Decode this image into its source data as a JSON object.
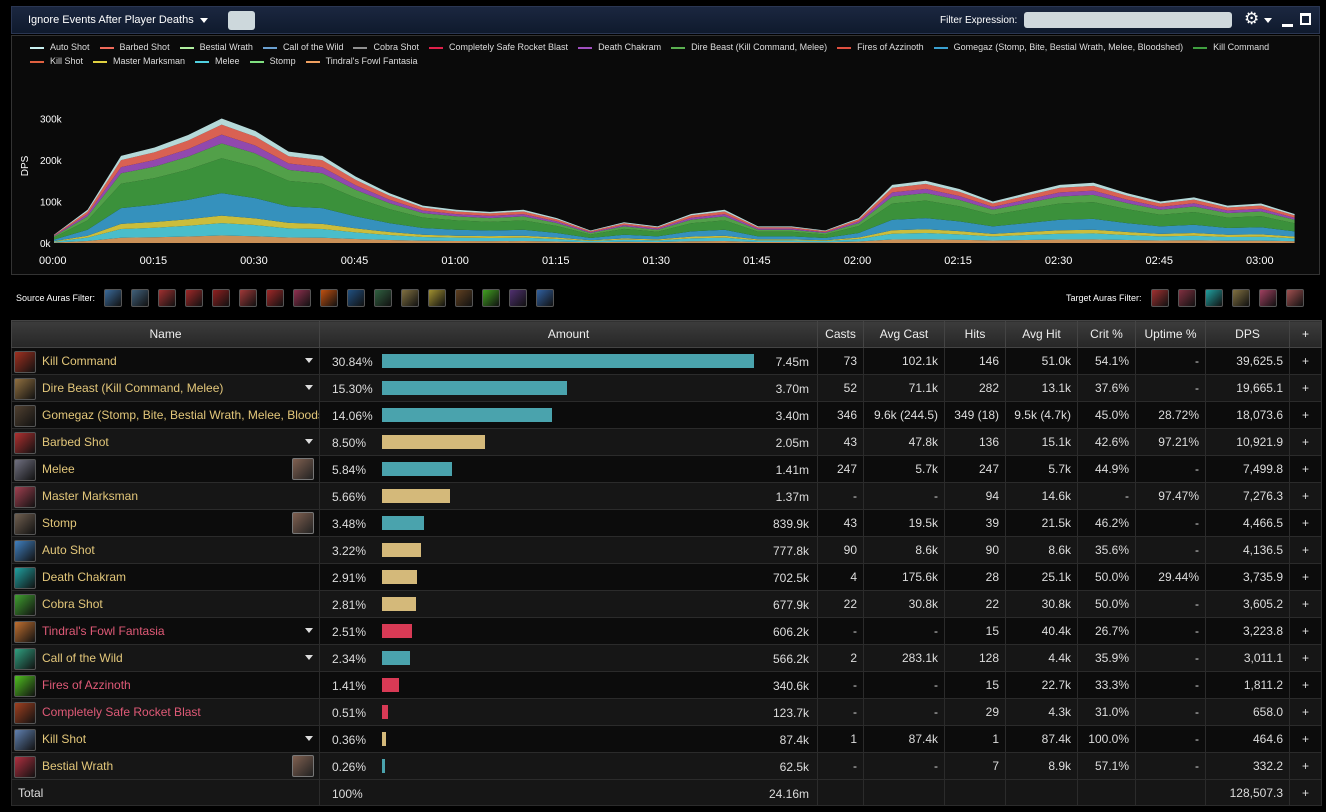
{
  "toolbar": {
    "ignore_label": "Ignore Events After Player Deaths",
    "filter_label": "Filter Expression:",
    "filter_value": "",
    "gear_glyph": "⚙"
  },
  "legend": [
    {
      "name": "Auto Shot",
      "color": "#c8f0f0"
    },
    {
      "name": "Barbed Shot",
      "color": "#f06a5a"
    },
    {
      "name": "Bestial Wrath",
      "color": "#b0f0a0"
    },
    {
      "name": "Call of the Wild",
      "color": "#6aa0d0"
    },
    {
      "name": "Cobra Shot",
      "color": "#909090"
    },
    {
      "name": "Completely Safe Rocket Blast",
      "color": "#e0204a"
    },
    {
      "name": "Death Chakram",
      "color": "#a050c0"
    },
    {
      "name": "Dire Beast (Kill Command, Melee)",
      "color": "#5ab050"
    },
    {
      "name": "Fires of Azzinoth",
      "color": "#e05040"
    },
    {
      "name": "Gomegaz (Stomp, Bite, Bestial Wrath, Melee, Bloodshed)",
      "color": "#3aa0d0"
    },
    {
      "name": "Kill Command",
      "color": "#40a040"
    },
    {
      "name": "Kill Shot",
      "color": "#e06040"
    },
    {
      "name": "Master Marksman",
      "color": "#e0d040"
    },
    {
      "name": "Melee",
      "color": "#50d0e0"
    },
    {
      "name": "Stomp",
      "color": "#80e080"
    },
    {
      "name": "Tindral's Fowl Fantasia",
      "color": "#f0a060"
    }
  ],
  "chart_data": {
    "type": "area",
    "ylabel": "DPS",
    "y_ticks": [
      "0k",
      "100k",
      "200k",
      "300k"
    ],
    "ylim": [
      0,
      330000
    ],
    "x_ticks": [
      "00:00",
      "00:15",
      "00:30",
      "00:45",
      "01:00",
      "01:15",
      "01:30",
      "01:45",
      "02:00",
      "02:15",
      "02:30",
      "02:45",
      "03:00"
    ],
    "x_seconds": [
      0,
      5,
      10,
      15,
      20,
      25,
      30,
      35,
      40,
      45,
      50,
      55,
      60,
      65,
      70,
      75,
      80,
      85,
      90,
      95,
      100,
      105,
      110,
      115,
      120,
      125,
      130,
      135,
      140,
      145,
      150,
      155,
      160,
      165,
      170,
      175,
      180,
      185
    ],
    "total_dps": [
      20000,
      80000,
      210000,
      230000,
      260000,
      300000,
      270000,
      220000,
      210000,
      160000,
      120000,
      90000,
      80000,
      75000,
      80000,
      60000,
      30000,
      50000,
      40000,
      70000,
      80000,
      40000,
      40000,
      30000,
      60000,
      140000,
      150000,
      130000,
      100000,
      120000,
      140000,
      145000,
      120000,
      100000,
      110000,
      90000,
      95000,
      70000
    ]
  },
  "source_auras_label": "Source Auras Filter:",
  "source_aura_icons": [
    "hunter-mark-icon",
    "aspect-icon",
    "barbed-icon",
    "wrath-icon",
    "beast-icon",
    "claw-icon",
    "bleed-icon",
    "trinket-icon",
    "fire-icon",
    "chain-icon",
    "wild-icon",
    "pack-icon",
    "gold-icon",
    "tusk-icon",
    "poison-icon",
    "spirit-icon",
    "arrow-icon"
  ],
  "target_auras_label": "Target Auras Filter:",
  "target_aura_icons": [
    "hunter-mark-target-icon",
    "claw-target-icon",
    "chakram-target-icon",
    "pack-target-icon",
    "blood-target-icon",
    "mark-target-icon"
  ],
  "table": {
    "headers": [
      "Name",
      "Amount",
      "Casts",
      "Avg Cast",
      "Hits",
      "Avg Hit",
      "Crit %",
      "Uptime %",
      "DPS",
      "+"
    ],
    "rows": [
      {
        "name": "Kill Command",
        "color": "gold",
        "caret": true,
        "pet": false,
        "pct": "30.84%",
        "frac": 1.0,
        "bar": "blue",
        "amount": "7.45m",
        "casts": "73",
        "avgcast": "102.1k",
        "hits": "146",
        "avghit": "51.0k",
        "crit": "54.1%",
        "uptime": "-",
        "dps": "39,625.5",
        "dpscolor": "green",
        "icon": "#a03020"
      },
      {
        "name": "Dire Beast (Kill Command, Melee)",
        "color": "gold",
        "caret": true,
        "pet": false,
        "pct": "15.30%",
        "frac": 0.497,
        "bar": "blue",
        "amount": "3.70m",
        "casts": "52",
        "avgcast": "71.1k",
        "hits": "282",
        "avghit": "13.1k",
        "crit": "37.6%",
        "uptime": "-",
        "dps": "19,665.1",
        "dpscolor": "green",
        "icon": "#907040"
      },
      {
        "name": "Gomegaz (Stomp, Bite, Bestial Wrath, Melee, Bloodshed)",
        "color": "gold",
        "caret": false,
        "pet": false,
        "pct": "14.06%",
        "frac": 0.456,
        "bar": "blue",
        "amount": "3.40m",
        "casts": "346",
        "avgcast": "9.6k (244.5)",
        "hits": "349 (18)",
        "avghit": "9.5k (4.7k)",
        "crit": "45.0%",
        "uptime": "28.72%",
        "dps": "18,073.6",
        "dpscolor": "green",
        "icon": "#504030"
      },
      {
        "name": "Barbed Shot",
        "color": "gold",
        "caret": true,
        "pet": false,
        "pct": "8.50%",
        "frac": 0.276,
        "bar": "tan",
        "amount": "2.05m",
        "casts": "43",
        "avgcast": "47.8k",
        "hits": "136",
        "avghit": "15.1k",
        "crit": "42.6%",
        "uptime": "97.21%",
        "dps": "10,921.9",
        "dpscolor": "green",
        "icon": "#b03030"
      },
      {
        "name": "Melee",
        "color": "gold",
        "caret": false,
        "pet": true,
        "pct": "5.84%",
        "frac": 0.189,
        "bar": "blue",
        "amount": "1.41m",
        "casts": "247",
        "avgcast": "5.7k",
        "hits": "247",
        "avghit": "5.7k",
        "crit": "44.9%",
        "uptime": "-",
        "dps": "7,499.8",
        "dpscolor": "green",
        "icon": "#707080"
      },
      {
        "name": "Master Marksman",
        "color": "gold",
        "caret": false,
        "pet": false,
        "pct": "5.66%",
        "frac": 0.183,
        "bar": "tan",
        "amount": "1.37m",
        "casts": "-",
        "avgcast": "-",
        "hits": "94",
        "avghit": "14.6k",
        "crit": "-",
        "uptime": "97.47%",
        "dps": "7,276.3",
        "dpscolor": "white",
        "icon": "#a04050"
      },
      {
        "name": "Stomp",
        "color": "gold",
        "caret": false,
        "pet": true,
        "pct": "3.48%",
        "frac": 0.113,
        "bar": "blue",
        "amount": "839.9k",
        "casts": "43",
        "avgcast": "19.5k",
        "hits": "39",
        "avghit": "21.5k",
        "crit": "46.2%",
        "uptime": "-",
        "dps": "4,466.5",
        "dpscolor": "green",
        "icon": "#706050"
      },
      {
        "name": "Auto Shot",
        "color": "gold",
        "caret": false,
        "pet": false,
        "pct": "3.22%",
        "frac": 0.104,
        "bar": "tan",
        "amount": "777.8k",
        "casts": "90",
        "avgcast": "8.6k",
        "hits": "90",
        "avghit": "8.6k",
        "crit": "35.6%",
        "uptime": "-",
        "dps": "4,136.5",
        "dpscolor": "white",
        "icon": "#4080c0"
      },
      {
        "name": "Death Chakram",
        "color": "gold",
        "caret": false,
        "pet": false,
        "pct": "2.91%",
        "frac": 0.094,
        "bar": "tan",
        "amount": "702.5k",
        "casts": "4",
        "avgcast": "175.6k",
        "hits": "28",
        "avghit": "25.1k",
        "crit": "50.0%",
        "uptime": "29.44%",
        "dps": "3,735.9",
        "dpscolor": "green",
        "icon": "#20a0a0"
      },
      {
        "name": "Cobra Shot",
        "color": "gold",
        "caret": false,
        "pet": false,
        "pct": "2.81%",
        "frac": 0.091,
        "bar": "tan",
        "amount": "677.9k",
        "casts": "22",
        "avgcast": "30.8k",
        "hits": "22",
        "avghit": "30.8k",
        "crit": "50.0%",
        "uptime": "-",
        "dps": "3,605.2",
        "dpscolor": "white",
        "icon": "#40a030"
      },
      {
        "name": "Tindral's Fowl Fantasia",
        "color": "pink",
        "caret": true,
        "pet": false,
        "pct": "2.51%",
        "frac": 0.081,
        "bar": "red",
        "amount": "606.2k",
        "casts": "-",
        "avgcast": "-",
        "hits": "15",
        "avghit": "40.4k",
        "crit": "26.7%",
        "uptime": "-",
        "dps": "3,223.8",
        "dpscolor": "green",
        "icon": "#c07030"
      },
      {
        "name": "Call of the Wild",
        "color": "gold",
        "caret": true,
        "pet": false,
        "pct": "2.34%",
        "frac": 0.076,
        "bar": "blue",
        "amount": "566.2k",
        "casts": "2",
        "avgcast": "283.1k",
        "hits": "128",
        "avghit": "4.4k",
        "crit": "35.9%",
        "uptime": "-",
        "dps": "3,011.1",
        "dpscolor": "white",
        "icon": "#30a080"
      },
      {
        "name": "Fires of Azzinoth",
        "color": "pink",
        "caret": false,
        "pet": false,
        "pct": "1.41%",
        "frac": 0.046,
        "bar": "red",
        "amount": "340.6k",
        "casts": "-",
        "avgcast": "-",
        "hits": "15",
        "avghit": "22.7k",
        "crit": "33.3%",
        "uptime": "-",
        "dps": "1,811.2",
        "dpscolor": "white",
        "icon": "#50c020"
      },
      {
        "name": "Completely Safe Rocket Blast",
        "color": "pink",
        "caret": false,
        "pet": false,
        "pct": "0.51%",
        "frac": 0.017,
        "bar": "red",
        "amount": "123.7k",
        "casts": "-",
        "avgcast": "-",
        "hits": "29",
        "avghit": "4.3k",
        "crit": "31.0%",
        "uptime": "-",
        "dps": "658.0",
        "dpscolor": "green",
        "icon": "#a04020"
      },
      {
        "name": "Kill Shot",
        "color": "gold",
        "caret": true,
        "pet": false,
        "pct": "0.36%",
        "frac": 0.012,
        "bar": "tan",
        "amount": "87.4k",
        "casts": "1",
        "avgcast": "87.4k",
        "hits": "1",
        "avghit": "87.4k",
        "crit": "100.0%",
        "uptime": "-",
        "dps": "464.6",
        "dpscolor": "white",
        "icon": "#6080b0"
      },
      {
        "name": "Bestial Wrath",
        "color": "gold",
        "caret": false,
        "pet": true,
        "pct": "0.26%",
        "frac": 0.008,
        "bar": "blue",
        "amount": "62.5k",
        "casts": "-",
        "avgcast": "-",
        "hits": "7",
        "avghit": "8.9k",
        "crit": "57.1%",
        "uptime": "-",
        "dps": "332.2",
        "dpscolor": "white",
        "icon": "#b03040"
      }
    ],
    "total": {
      "label": "Total",
      "pct": "100%",
      "amount": "24.16m",
      "dps": "128,507.3"
    }
  },
  "colors": {
    "bar_blue": "#4aa3ad",
    "bar_tan": "#d4b97a",
    "bar_red": "#d83a55"
  }
}
